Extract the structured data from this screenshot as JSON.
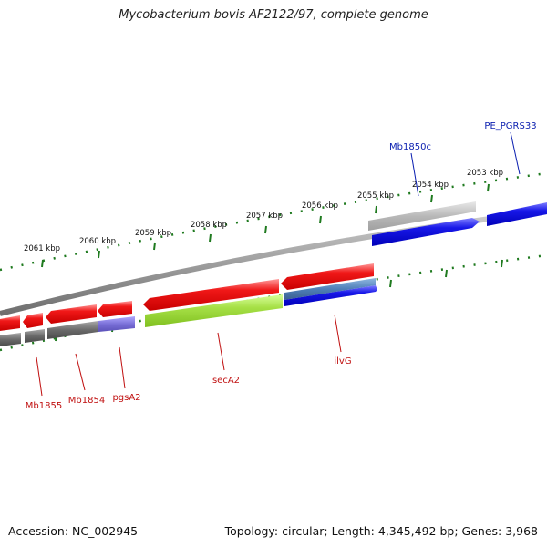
{
  "title": "Mycobacterium bovis AF2122/97, complete genome",
  "footer": {
    "accession": "Accession: NC_002945",
    "summary": "Topology: circular; Length: 4,345,492 bp; Genes: 3,968"
  },
  "colors": {
    "backbone": "#7a7a7a",
    "ticks": "#1f7a1f",
    "forward_cds": "#2020e0",
    "reverse_cds": "#e01010",
    "pseudo_gene": "#b8b8b8",
    "gene_shadow": "#6a6a6a",
    "lavender": "#7a70d8",
    "lime": "#a6e046",
    "steel": "#4f7fb8",
    "label_forward": "#0b1fb0",
    "label_reverse": "#c01010"
  },
  "tick_labels": [
    "2053 kbp",
    "2054 kbp",
    "2055 kbp",
    "2056 kbp",
    "2057 kbp",
    "2058 kbp",
    "2059 kbp",
    "2060 kbp",
    "2061 kbp"
  ],
  "gene_labels_forward": [
    "PE_PGRS33",
    "Mb1850c"
  ],
  "gene_labels_reverse": [
    "Mb1855",
    "Mb1854",
    "pgsA2",
    "secA2",
    "ilvG"
  ]
}
